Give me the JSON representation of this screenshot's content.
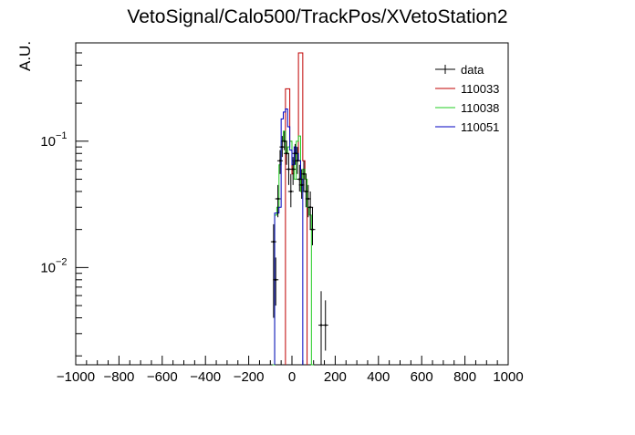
{
  "chart_data": {
    "type": "histogram",
    "title": "VetoSignal/Calo500/TrackPos/XVetoStation2",
    "xlabel": "",
    "ylabel": "A.U.",
    "xlim": [
      -1000,
      1000
    ],
    "ylim": [
      0.0017,
      0.6
    ],
    "yscale": "log",
    "xticks": [
      -1000,
      -800,
      -600,
      -400,
      -200,
      0,
      200,
      400,
      600,
      800,
      1000
    ],
    "xtick_labels": [
      "−1000",
      "−800",
      "−600",
      "−400",
      "−200",
      "0",
      "200",
      "400",
      "600",
      "800",
      "1000"
    ],
    "yticks": [
      {
        "value": 0.1,
        "base": "10",
        "exp": "−1"
      },
      {
        "value": 0.01,
        "base": "10",
        "exp": "−2"
      }
    ],
    "legend_position": "top-right",
    "legend": [
      {
        "label": "data",
        "color": "#000000",
        "style": "errorbar"
      },
      {
        "label": "110033",
        "color": "#c00000",
        "style": "line"
      },
      {
        "label": "110038",
        "color": "#22cc22",
        "style": "line"
      },
      {
        "label": "110051",
        "color": "#0000c0",
        "style": "line"
      }
    ],
    "series": [
      {
        "name": "110033",
        "color": "#c00000",
        "bins": [
          [
            -30,
            -20,
            0.26
          ],
          [
            -20,
            -10,
            0.26
          ],
          [
            -10,
            0,
            0.1
          ],
          [
            0,
            10,
            0.055
          ],
          [
            10,
            20,
            0.07
          ],
          [
            20,
            30,
            0.07
          ],
          [
            30,
            40,
            0.5
          ],
          [
            40,
            50,
            0.5
          ],
          [
            50,
            60,
            0.07
          ],
          [
            60,
            70,
            0.05
          ]
        ]
      },
      {
        "name": "110038",
        "color": "#22cc22",
        "bins": [
          [
            -90,
            -80,
            0.0017
          ],
          [
            -80,
            -70,
            0.026
          ],
          [
            -70,
            -60,
            0.03
          ],
          [
            -60,
            -50,
            0.065
          ],
          [
            -50,
            -40,
            0.1
          ],
          [
            -40,
            -30,
            0.12
          ],
          [
            -30,
            -20,
            0.08
          ],
          [
            -20,
            -10,
            0.09
          ],
          [
            -10,
            0,
            0.1
          ],
          [
            0,
            10,
            0.07
          ],
          [
            10,
            20,
            0.05
          ],
          [
            20,
            30,
            0.1
          ],
          [
            30,
            40,
            0.11
          ],
          [
            40,
            50,
            0.04
          ],
          [
            50,
            60,
            0.06
          ],
          [
            60,
            70,
            0.05
          ],
          [
            70,
            80,
            0.03
          ],
          [
            80,
            90,
            0.026
          ],
          [
            90,
            100,
            0.0017
          ]
        ]
      },
      {
        "name": "110051",
        "color": "#0000c0",
        "bins": [
          [
            -80,
            -70,
            0.027
          ],
          [
            -70,
            -60,
            0.027
          ],
          [
            -60,
            -50,
            0.03
          ],
          [
            -50,
            -40,
            0.15
          ],
          [
            -40,
            -30,
            0.17
          ],
          [
            -30,
            -20,
            0.18
          ],
          [
            -20,
            -10,
            0.13
          ],
          [
            -10,
            0,
            0.085
          ],
          [
            0,
            10,
            0.065
          ],
          [
            10,
            20,
            0.09
          ],
          [
            20,
            30,
            0.08
          ],
          [
            30,
            40,
            0.07
          ],
          [
            40,
            50,
            0.05
          ]
        ]
      }
    ],
    "data_points": [
      {
        "x": -85,
        "y": 0.016,
        "lo": 0.004,
        "hi": 0.022
      },
      {
        "x": -75,
        "y": 0.008,
        "lo": 0.005,
        "hi": 0.012
      },
      {
        "x": -65,
        "y": 0.035,
        "lo": 0.025,
        "hi": 0.045
      },
      {
        "x": -55,
        "y": 0.07,
        "lo": 0.055,
        "hi": 0.085
      },
      {
        "x": -45,
        "y": 0.09,
        "lo": 0.075,
        "hi": 0.11
      },
      {
        "x": -35,
        "y": 0.1,
        "lo": 0.085,
        "hi": 0.12
      },
      {
        "x": -25,
        "y": 0.08,
        "lo": 0.065,
        "hi": 0.1
      },
      {
        "x": -15,
        "y": 0.06,
        "lo": 0.045,
        "hi": 0.08
      },
      {
        "x": -5,
        "y": 0.04,
        "lo": 0.03,
        "hi": 0.055
      },
      {
        "x": 5,
        "y": 0.06,
        "lo": 0.045,
        "hi": 0.075
      },
      {
        "x": 15,
        "y": 0.08,
        "lo": 0.065,
        "hi": 0.095
      },
      {
        "x": 25,
        "y": 0.07,
        "lo": 0.055,
        "hi": 0.09
      },
      {
        "x": 35,
        "y": 0.05,
        "lo": 0.04,
        "hi": 0.065
      },
      {
        "x": 45,
        "y": 0.045,
        "lo": 0.035,
        "hi": 0.06
      },
      {
        "x": 55,
        "y": 0.055,
        "lo": 0.04,
        "hi": 0.07
      },
      {
        "x": 65,
        "y": 0.04,
        "lo": 0.03,
        "hi": 0.055
      },
      {
        "x": 75,
        "y": 0.035,
        "lo": 0.025,
        "hi": 0.045
      },
      {
        "x": 85,
        "y": 0.03,
        "lo": 0.02,
        "hi": 0.04
      },
      {
        "x": 95,
        "y": 0.02,
        "lo": 0.015,
        "hi": 0.03
      },
      {
        "x": 135,
        "y": 0.0035,
        "lo": 0.0017,
        "hi": 0.0065
      },
      {
        "x": 155,
        "y": 0.0035,
        "lo": 0.0022,
        "hi": 0.0055
      }
    ]
  }
}
